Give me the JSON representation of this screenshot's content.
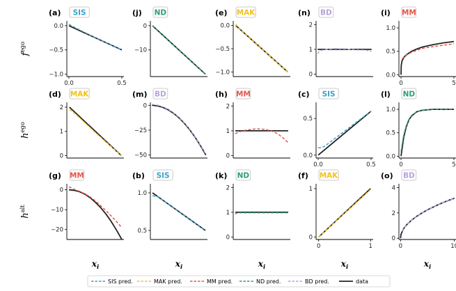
{
  "colors": {
    "SIS": "#3aa1c9",
    "MAK": "#f2c31a",
    "MM": "#e4574a",
    "ND": "#2e9c7a",
    "BD": "#b9a2dc",
    "data": "#222222"
  },
  "row_ylabels": [
    {
      "main": "f",
      "sup": "ego"
    },
    {
      "main": "h",
      "sup": "ego"
    },
    {
      "main": "h",
      "sup": "alt"
    }
  ],
  "xlabel": "x_i",
  "legend": [
    {
      "key": "SIS",
      "label": "SIS pred.",
      "style": "dashed"
    },
    {
      "key": "MAK",
      "label": "MAK pred.",
      "style": "dashed"
    },
    {
      "key": "MM",
      "label": "MM pred.",
      "style": "dashed"
    },
    {
      "key": "ND",
      "label": "ND pred.",
      "style": "dashed"
    },
    {
      "key": "BD",
      "label": "BD pred.",
      "style": "dashed"
    },
    {
      "key": "data",
      "label": "data",
      "style": "solid"
    }
  ],
  "chart_data": [
    {
      "panel": "(a)",
      "model": "SIS",
      "type": "line",
      "xlim": [
        -0.02,
        0.52
      ],
      "ylim": [
        -1.05,
        0.1
      ],
      "xticks": [
        0.0,
        0.5
      ],
      "xticklabels": [
        "0.0",
        "0.5"
      ],
      "yticks": [
        -1.0,
        -0.5,
        0.0
      ],
      "yticklabels": [
        "−1.0",
        "−0.5",
        "0.0"
      ],
      "series": [
        {
          "name": "data",
          "x": [
            0,
            0.5
          ],
          "y": [
            0,
            -0.5
          ]
        },
        {
          "name": "SIS pred.",
          "x": [
            0,
            0.05,
            0.25,
            0.5
          ],
          "y": [
            0.03,
            -0.03,
            -0.25,
            -0.5
          ]
        }
      ]
    },
    {
      "panel": "(d)",
      "model": "MAK",
      "type": "line",
      "xlim": [
        -0.05,
        1.05
      ],
      "ylim": [
        -0.1,
        2.2
      ],
      "xticks": [],
      "xticklabels": [],
      "yticks": [
        0,
        1,
        2
      ],
      "yticklabels": [
        "0",
        "1",
        "2"
      ],
      "series": [
        {
          "name": "data",
          "x": [
            0,
            1
          ],
          "y": [
            2,
            0
          ]
        },
        {
          "name": "MAK pred.",
          "x": [
            0,
            0.1,
            0.5,
            1
          ],
          "y": [
            1.9,
            1.75,
            0.95,
            0
          ]
        }
      ]
    },
    {
      "panel": "(g)",
      "model": "MM",
      "type": "line",
      "xlim": [
        -0.2,
        5.2
      ],
      "ylim": [
        -25,
        3
      ],
      "xticks": [],
      "xticklabels": [],
      "yticks": [
        0,
        -10,
        -20
      ],
      "yticklabels": [
        "0",
        "−10",
        "−20"
      ],
      "series": [
        {
          "name": "data",
          "x": [
            0,
            0.5,
            1,
            1.5,
            2,
            2.5,
            3,
            3.5,
            4,
            4.5,
            5
          ],
          "y": [
            0,
            -0.3,
            -1,
            -2.2,
            -4,
            -6.3,
            -9,
            -12.2,
            -16,
            -20.3,
            -25
          ]
        },
        {
          "name": "MM pred.",
          "x": [
            0,
            0.5,
            1,
            1.5,
            2,
            2.5,
            3,
            3.5,
            4,
            4.5,
            5
          ],
          "y": [
            1.5,
            0.2,
            -0.8,
            -2,
            -3.6,
            -5.6,
            -8,
            -10.5,
            -13.2,
            -16,
            -19
          ]
        }
      ]
    },
    {
      "panel": "(j)",
      "model": "ND",
      "type": "line",
      "xlim": [
        -0.2,
        5.2
      ],
      "ylim": [
        -21,
        2
      ],
      "xticks": [],
      "xticklabels": [],
      "yticks": [
        0,
        -10
      ],
      "yticklabels": [
        "0",
        "−10"
      ],
      "series": [
        {
          "name": "data",
          "x": [
            0,
            5
          ],
          "y": [
            0,
            -20
          ]
        },
        {
          "name": "ND pred.",
          "x": [
            0,
            2.5,
            5
          ],
          "y": [
            0,
            -10,
            -20
          ]
        }
      ]
    },
    {
      "panel": "(m)",
      "model": "BD",
      "type": "line",
      "xlim": [
        -0.3,
        10.3
      ],
      "ylim": [
        -53,
        3
      ],
      "xticks": [],
      "xticklabels": [],
      "yticks": [
        0,
        -25,
        -50
      ],
      "yticklabels": [
        "0",
        "−25",
        "−50"
      ],
      "series": [
        {
          "name": "data",
          "x": [
            0,
            1,
            2,
            3,
            4,
            5,
            6,
            7,
            8,
            9,
            10
          ],
          "y": [
            0,
            -0.5,
            -2,
            -4.5,
            -8,
            -12.5,
            -18,
            -24.5,
            -32,
            -40.5,
            -50
          ]
        },
        {
          "name": "BD pred.",
          "x": [
            0,
            1,
            2,
            3,
            4,
            5,
            6,
            7,
            8,
            9,
            10
          ],
          "y": [
            1,
            0.2,
            -1.5,
            -4,
            -7.5,
            -12,
            -17.5,
            -24,
            -31.5,
            -40,
            -49
          ]
        }
      ]
    },
    {
      "panel": "(b)",
      "model": "SIS",
      "type": "line",
      "xlim": [
        -0.02,
        0.52
      ],
      "ylim": [
        0.38,
        1.12
      ],
      "xticks": [],
      "xticklabels": [],
      "yticks": [
        0.5,
        1.0
      ],
      "yticklabels": [
        "0.5",
        "1.0"
      ],
      "series": [
        {
          "name": "data",
          "x": [
            0,
            0.5
          ],
          "y": [
            1.0,
            0.5
          ]
        },
        {
          "name": "SIS pred.",
          "x": [
            0,
            0.05,
            0.5
          ],
          "y": [
            0.96,
            0.95,
            0.5
          ]
        }
      ]
    },
    {
      "panel": "(e)",
      "model": "MAK",
      "type": "line",
      "xlim": [
        -0.05,
        1.05
      ],
      "ylim": [
        -1.1,
        0.1
      ],
      "xticks": [],
      "xticklabels": [],
      "yticks": [
        0.0,
        -0.5,
        -1.0
      ],
      "yticklabels": [
        "0.0",
        "−0.5",
        "−1.0"
      ],
      "series": [
        {
          "name": "data",
          "x": [
            0,
            1
          ],
          "y": [
            0,
            -1
          ]
        },
        {
          "name": "MAK pred.",
          "x": [
            0,
            0.05,
            1
          ],
          "y": [
            0.03,
            -0.05,
            -1
          ]
        }
      ]
    },
    {
      "panel": "(h)",
      "model": "MM",
      "type": "line",
      "xlim": [
        -0.2,
        5.2
      ],
      "ylim": [
        -0.1,
        2.15
      ],
      "xticks": [],
      "xticklabels": [],
      "yticks": [
        0,
        1,
        2
      ],
      "yticklabels": [
        "0",
        "1",
        "2"
      ],
      "series": [
        {
          "name": "data",
          "x": [
            0,
            5
          ],
          "y": [
            1,
            1
          ]
        },
        {
          "name": "MM pred.",
          "x": [
            0,
            0.3,
            1,
            2,
            2.8,
            3.5,
            4,
            4.5,
            5
          ],
          "y": [
            0.88,
            0.95,
            1.03,
            1.08,
            1.06,
            0.98,
            0.88,
            0.72,
            0.52
          ]
        }
      ]
    },
    {
      "panel": "(k)",
      "model": "ND",
      "type": "line",
      "xlim": [
        -0.2,
        5.2
      ],
      "ylim": [
        -0.1,
        2.15
      ],
      "xticks": [],
      "xticklabels": [],
      "yticks": [
        0,
        1,
        2
      ],
      "yticklabels": [
        "0",
        "1",
        "2"
      ],
      "series": [
        {
          "name": "data",
          "x": [
            0,
            5
          ],
          "y": [
            1,
            1
          ]
        },
        {
          "name": "ND pred.",
          "x": [
            0,
            0.2,
            5
          ],
          "y": [
            0.93,
            0.98,
            0.98
          ]
        }
      ]
    },
    {
      "panel": "(n)",
      "model": "BD",
      "type": "line",
      "xlim": [
        -0.3,
        10.3
      ],
      "ylim": [
        -0.1,
        2.15
      ],
      "xticks": [],
      "xticklabels": [],
      "yticks": [
        0,
        1,
        2
      ],
      "yticklabels": [
        "0",
        "1",
        "2"
      ],
      "series": [
        {
          "name": "data",
          "x": [
            0,
            10
          ],
          "y": [
            1,
            1
          ]
        },
        {
          "name": "BD pred.",
          "x": [
            0,
            0.3,
            1,
            3,
            5,
            7,
            9,
            10
          ],
          "y": [
            0.82,
            0.93,
            0.98,
            1.03,
            1.02,
            0.98,
            0.97,
            0.92
          ]
        }
      ]
    },
    {
      "panel": "(c)",
      "model": "SIS",
      "type": "line",
      "xlim": [
        -0.02,
        0.52
      ],
      "ylim": [
        -0.04,
        0.72
      ],
      "xticks": [
        0.0,
        0.5
      ],
      "xticklabels": [
        "0.0",
        "0.5"
      ],
      "yticks": [
        0.0,
        0.5
      ],
      "yticklabels": [
        "0.0",
        "0.5"
      ],
      "series": [
        {
          "name": "data",
          "x": [
            0,
            0.5
          ],
          "y": [
            0,
            0.6
          ]
        },
        {
          "name": "SIS pred.",
          "x": [
            0,
            0.03,
            0.06,
            0.5
          ],
          "y": [
            0.1,
            0.1,
            0.12,
            0.6
          ]
        }
      ]
    },
    {
      "panel": "(f)",
      "model": "MAK",
      "type": "line",
      "xlim": [
        -0.05,
        1.05
      ],
      "ylim": [
        -0.05,
        1.1
      ],
      "xticks": [
        0,
        1
      ],
      "xticklabels": [
        "0",
        "1"
      ],
      "yticks": [
        0,
        1
      ],
      "yticklabels": [
        "0",
        "1"
      ],
      "series": [
        {
          "name": "data",
          "x": [
            0,
            1
          ],
          "y": [
            0,
            1
          ]
        },
        {
          "name": "MAK pred.",
          "x": [
            0,
            0.05,
            1
          ],
          "y": [
            0,
            0.05,
            0.98
          ]
        }
      ]
    },
    {
      "panel": "(i)",
      "model": "MM",
      "type": "line",
      "xlim": [
        -0.2,
        5.2
      ],
      "ylim": [
        -0.04,
        1.15
      ],
      "xticks": [
        0,
        5
      ],
      "xticklabels": [
        "0",
        "5"
      ],
      "yticks": [
        0.0,
        0.5,
        1.0
      ],
      "yticklabels": [
        "0.0",
        "0.5",
        "1.0"
      ],
      "series": [
        {
          "name": "data",
          "x": [
            0,
            0.02,
            0.1,
            0.3,
            0.6,
            1,
            1.5,
            2,
            3,
            4,
            5
          ],
          "y": [
            0,
            0.2,
            0.3,
            0.38,
            0.44,
            0.5,
            0.55,
            0.59,
            0.64,
            0.68,
            0.71
          ]
        },
        {
          "name": "MM pred.",
          "x": [
            0.1,
            0.3,
            0.6,
            1,
            1.5,
            2,
            3,
            4,
            5
          ],
          "y": [
            0.34,
            0.38,
            0.43,
            0.48,
            0.52,
            0.56,
            0.6,
            0.63,
            0.66
          ]
        }
      ]
    },
    {
      "panel": "(l)",
      "model": "ND",
      "type": "line",
      "xlim": [
        -0.2,
        5.2
      ],
      "ylim": [
        -0.04,
        1.15
      ],
      "xticks": [
        0,
        5
      ],
      "xticklabels": [
        "0",
        "5"
      ],
      "yticks": [
        0.0,
        0.5,
        1.0
      ],
      "yticklabels": [
        "0.0",
        "0.5",
        "1.0"
      ],
      "series": [
        {
          "name": "data",
          "x": [
            0,
            0.25,
            0.5,
            0.75,
            1,
            1.5,
            2,
            2.5,
            3,
            4,
            5
          ],
          "y": [
            0,
            0.4,
            0.63,
            0.78,
            0.86,
            0.95,
            0.98,
            0.99,
            1.0,
            1.0,
            1.0
          ]
        },
        {
          "name": "ND pred.",
          "x": [
            0,
            0.25,
            0.5,
            0.75,
            1,
            1.5,
            2,
            2.5,
            3,
            4,
            5
          ],
          "y": [
            0.1,
            0.45,
            0.65,
            0.79,
            0.87,
            0.95,
            0.98,
            0.99,
            1.0,
            1.0,
            1.0
          ]
        }
      ]
    },
    {
      "panel": "(o)",
      "model": "BD",
      "type": "line",
      "xlim": [
        -0.3,
        10.3
      ],
      "ylim": [
        -0.1,
        4.3
      ],
      "xticks": [
        0,
        10
      ],
      "xticklabels": [
        "0",
        "10"
      ],
      "yticks": [
        0,
        2,
        4
      ],
      "yticklabels": [
        "0",
        "2",
        "4"
      ],
      "series": [
        {
          "name": "data",
          "x": [
            0,
            0.1,
            0.5,
            1,
            2,
            3,
            4,
            5,
            6,
            7,
            8,
            9,
            10
          ],
          "y": [
            0,
            0.32,
            0.71,
            1.0,
            1.41,
            1.73,
            2.0,
            2.24,
            2.45,
            2.65,
            2.83,
            3.0,
            3.16
          ]
        },
        {
          "name": "BD pred.",
          "x": [
            0.3,
            0.5,
            1,
            2,
            3,
            4,
            5,
            6,
            7,
            8,
            9,
            10
          ],
          "y": [
            0.55,
            0.72,
            1.0,
            1.41,
            1.73,
            2.0,
            2.24,
            2.45,
            2.65,
            2.83,
            3.0,
            3.16
          ]
        }
      ]
    }
  ]
}
